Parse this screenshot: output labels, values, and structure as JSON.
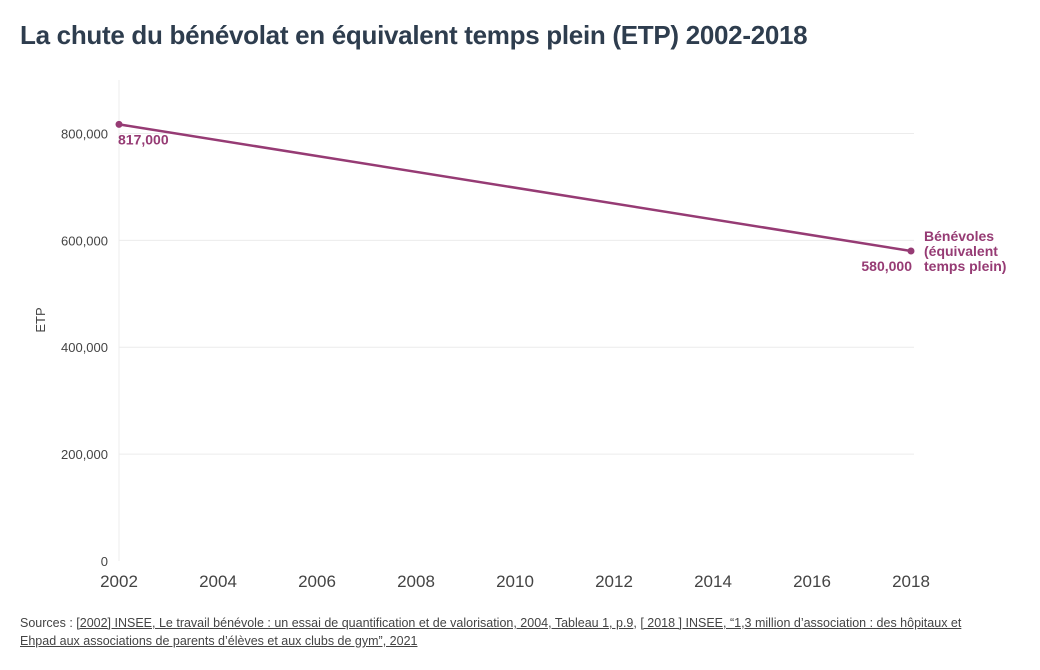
{
  "title": "La chute du bénévolat en équivalent temps plein (ETP) 2002-2018",
  "colors": {
    "series": "#963b74",
    "grid": "#ececec",
    "axis": "#555555",
    "title": "#2e3d4e"
  },
  "chart_data": {
    "type": "line",
    "title": "La chute du bénévolat en équivalent temps plein (ETP) 2002-2018",
    "xlabel": "",
    "ylabel": "ETP",
    "xlim": [
      2002,
      2018
    ],
    "ylim": [
      0,
      900000
    ],
    "x_ticks": [
      2002,
      2004,
      2006,
      2008,
      2010,
      2012,
      2014,
      2016,
      2018
    ],
    "y_ticks": [
      0,
      200000,
      400000,
      600000,
      800000
    ],
    "y_tick_labels": [
      "0",
      "200,000",
      "400,000",
      "600,000",
      "800,000"
    ],
    "grid": true,
    "series": [
      {
        "name_lines": [
          "Bénévoles",
          "(équivalent",
          "temps plein)"
        ],
        "x": [
          2002,
          2018
        ],
        "y": [
          817000,
          580000
        ],
        "labels": [
          "817,000",
          "580,000"
        ]
      }
    ]
  },
  "sources": {
    "prefix": "Sources : ",
    "link1": "[2002] INSEE, Le travail bénévole : un essai de quantification et de valorisation, 2004, Tableau 1, p.9",
    "separator": ", ",
    "link2": "[ 2018 ] INSEE, “1,3 million d’association : des hôpitaux et Ehpad aux associations de parents d’élèves et aux clubs de gym”, 2021"
  }
}
